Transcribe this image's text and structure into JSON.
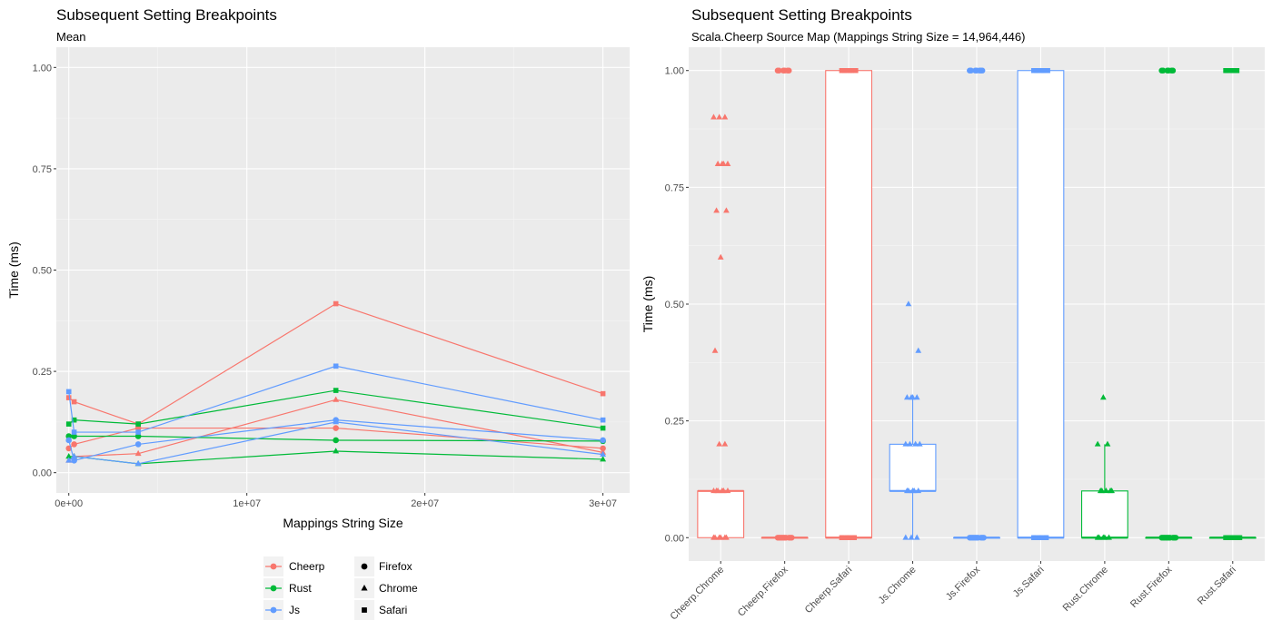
{
  "chart_data": [
    {
      "type": "line",
      "title": "Subsequent Setting Breakpoints",
      "subtitle": "Mean",
      "xlabel": "Mappings String Size",
      "ylabel": "Time (ms)",
      "xlim": [
        -700000,
        31500000
      ],
      "ylim": [
        -0.05,
        1.05
      ],
      "x_ticks": [
        0,
        10000000,
        20000000,
        30000000
      ],
      "x_tick_labels": [
        "0e+00",
        "1e+07",
        "2e+07",
        "3e+07"
      ],
      "y_ticks": [
        0,
        0.25,
        0.5,
        0.75,
        1.0
      ],
      "y_tick_labels": [
        "0.00",
        "0.25",
        "0.50",
        "0.75",
        "1.00"
      ],
      "grid": true,
      "legend": {
        "placement": "bottom",
        "color_entries": [
          {
            "label": "Cheerp",
            "color": "#F8766D"
          },
          {
            "label": "Rust",
            "color": "#00BA38"
          },
          {
            "label": "Js",
            "color": "#619CFF"
          }
        ],
        "shape_entries": [
          {
            "label": "Firefox",
            "shape": "circle"
          },
          {
            "label": "Chrome",
            "shape": "triangle"
          },
          {
            "label": "Safari",
            "shape": "square"
          }
        ]
      },
      "series": [
        {
          "name": "Cheerp Firefox",
          "language": "Cheerp",
          "browser": "Firefox",
          "color": "#F8766D",
          "shape": "circle",
          "x": [
            0,
            300000,
            3900000,
            15000000,
            30000000
          ],
          "y": [
            0.06,
            0.07,
            0.11,
            0.11,
            0.06
          ]
        },
        {
          "name": "Cheerp Chrome",
          "language": "Cheerp",
          "browser": "Chrome",
          "color": "#F8766D",
          "shape": "triangle",
          "x": [
            0,
            300000,
            3900000,
            15000000,
            30000000
          ],
          "y": [
            0.03,
            0.04,
            0.047,
            0.18,
            0.05
          ]
        },
        {
          "name": "Cheerp Safari",
          "language": "Cheerp",
          "browser": "Safari",
          "color": "#F8766D",
          "shape": "square",
          "x": [
            0,
            300000,
            3900000,
            15000000,
            30000000
          ],
          "y": [
            0.185,
            0.175,
            0.12,
            0.417,
            0.195
          ]
        },
        {
          "name": "Rust Firefox",
          "language": "Rust",
          "browser": "Firefox",
          "color": "#00BA38",
          "shape": "circle",
          "x": [
            0,
            300000,
            3900000,
            15000000,
            30000000
          ],
          "y": [
            0.09,
            0.09,
            0.09,
            0.08,
            0.078
          ]
        },
        {
          "name": "Rust Chrome",
          "language": "Rust",
          "browser": "Chrome",
          "color": "#00BA38",
          "shape": "triangle",
          "x": [
            0,
            300000,
            3900000,
            15000000,
            30000000
          ],
          "y": [
            0.04,
            0.04,
            0.022,
            0.053,
            0.033
          ]
        },
        {
          "name": "Rust Safari",
          "language": "Rust",
          "browser": "Safari",
          "color": "#00BA38",
          "shape": "square",
          "x": [
            0,
            300000,
            3900000,
            15000000,
            30000000
          ],
          "y": [
            0.12,
            0.13,
            0.12,
            0.203,
            0.11
          ]
        },
        {
          "name": "Js Firefox",
          "language": "Js",
          "browser": "Firefox",
          "color": "#619CFF",
          "shape": "circle",
          "x": [
            0,
            300000,
            3900000,
            15000000,
            30000000
          ],
          "y": [
            0.08,
            0.03,
            0.07,
            0.13,
            0.08
          ]
        },
        {
          "name": "Js Chrome",
          "language": "Js",
          "browser": "Chrome",
          "color": "#619CFF",
          "shape": "triangle",
          "x": [
            0,
            300000,
            3900000,
            15000000,
            30000000
          ],
          "y": [
            0.03,
            0.04,
            0.022,
            0.125,
            0.045
          ]
        },
        {
          "name": "Js Safari",
          "language": "Js",
          "browser": "Safari",
          "color": "#619CFF",
          "shape": "square",
          "x": [
            0,
            300000,
            3900000,
            15000000,
            30000000
          ],
          "y": [
            0.2,
            0.1,
            0.1,
            0.263,
            0.13
          ]
        }
      ]
    },
    {
      "type": "box",
      "title": "Subsequent Setting Breakpoints",
      "subtitle": "Scala.Cheerp Source Map (Mappings String Size = 14,964,446)",
      "xlabel": "",
      "ylabel": "Time (ms)",
      "ylim": [
        -0.05,
        1.05
      ],
      "y_ticks": [
        0,
        0.25,
        0.5,
        0.75,
        1.0
      ],
      "y_tick_labels": [
        "0.00",
        "0.25",
        "0.50",
        "0.75",
        "1.00"
      ],
      "grid": true,
      "categories": [
        "Cheerp.Chrome",
        "Cheerp.Firefox",
        "Cheerp.Safari",
        "Js.Chrome",
        "Js.Firefox",
        "Js.Safari",
        "Rust.Chrome",
        "Rust.Firefox",
        "Rust.Safari"
      ],
      "boxes": [
        {
          "category": "Cheerp.Chrome",
          "color": "#F8766D",
          "shape": "triangle",
          "q1": 0.0,
          "median": 0.1,
          "q3": 0.1,
          "whisker_low": 0.0,
          "whisker_high": 0.1,
          "outliers": [
            0.2,
            0.2,
            0.4,
            0.6,
            0.7,
            0.7,
            0.8,
            0.8,
            0.8,
            0.8,
            0.9,
            0.9,
            0.9
          ],
          "points": [
            0,
            0,
            0,
            0,
            0,
            0,
            0.1,
            0.1,
            0.1,
            0.1,
            0.1,
            0.1
          ]
        },
        {
          "category": "Cheerp.Firefox",
          "color": "#F8766D",
          "shape": "circle",
          "q1": 0.0,
          "median": 0.0,
          "q3": 0.0,
          "whisker_low": 0.0,
          "whisker_high": 0.0,
          "outliers": [
            1.0,
            1.0,
            1.0,
            1.0,
            1.0,
            1.0
          ],
          "points": [
            0,
            0,
            0,
            0,
            0,
            0,
            0,
            0,
            0,
            0
          ]
        },
        {
          "category": "Cheerp.Safari",
          "color": "#F8766D",
          "shape": "square",
          "q1": 0.0,
          "median": 0.0,
          "q3": 1.0,
          "whisker_low": 0.0,
          "whisker_high": 1.0,
          "outliers": [],
          "points": [
            0,
            0,
            0,
            0,
            0,
            0,
            1,
            1,
            1,
            1,
            1,
            1
          ]
        },
        {
          "category": "Js.Chrome",
          "color": "#619CFF",
          "shape": "triangle",
          "q1": 0.1,
          "median": 0.1,
          "q3": 0.2,
          "whisker_low": 0.0,
          "whisker_high": 0.3,
          "outliers": [
            0.4,
            0.5
          ],
          "points": [
            0,
            0,
            0,
            0.1,
            0.1,
            0.1,
            0.1,
            0.1,
            0.2,
            0.2,
            0.2,
            0.2,
            0.3,
            0.3,
            0.3,
            0.3
          ]
        },
        {
          "category": "Js.Firefox",
          "color": "#619CFF",
          "shape": "circle",
          "q1": 0.0,
          "median": 0.0,
          "q3": 0.0,
          "whisker_low": 0.0,
          "whisker_high": 0.0,
          "outliers": [
            1.0,
            1.0,
            1.0,
            1.0,
            1.0,
            1.0,
            1.0
          ],
          "points": [
            0,
            0,
            0,
            0,
            0,
            0,
            0,
            0,
            0,
            0
          ]
        },
        {
          "category": "Js.Safari",
          "color": "#619CFF",
          "shape": "square",
          "q1": 0.0,
          "median": 0.0,
          "q3": 1.0,
          "whisker_low": 0.0,
          "whisker_high": 1.0,
          "outliers": [],
          "points": [
            0,
            0,
            0,
            0,
            0,
            0,
            1,
            1,
            1,
            1,
            1,
            1
          ]
        },
        {
          "category": "Rust.Chrome",
          "color": "#00BA38",
          "shape": "triangle",
          "q1": 0.0,
          "median": 0.0,
          "q3": 0.1,
          "whisker_low": 0.0,
          "whisker_high": 0.2,
          "outliers": [
            0.3
          ],
          "points": [
            0,
            0,
            0,
            0,
            0,
            0.1,
            0.1,
            0.1,
            0.1,
            0.1,
            0.2,
            0.2
          ]
        },
        {
          "category": "Rust.Firefox",
          "color": "#00BA38",
          "shape": "circle",
          "q1": 0.0,
          "median": 0.0,
          "q3": 0.0,
          "whisker_low": 0.0,
          "whisker_high": 0.0,
          "outliers": [
            1.0,
            1.0,
            1.0,
            1.0,
            1.0,
            1.0
          ],
          "points": [
            0,
            0,
            0,
            0,
            0,
            0,
            0,
            0,
            0,
            0
          ]
        },
        {
          "category": "Rust.Safari",
          "color": "#00BA38",
          "shape": "square",
          "q1": 0.0,
          "median": 0.0,
          "q3": 0.0,
          "whisker_low": 0.0,
          "whisker_high": 0.0,
          "outliers": [
            1.0,
            1.0,
            1.0,
            1.0,
            1.0,
            1.0
          ],
          "points": [
            0,
            0,
            0,
            0,
            0,
            0,
            0,
            0,
            0,
            0
          ]
        }
      ]
    }
  ]
}
